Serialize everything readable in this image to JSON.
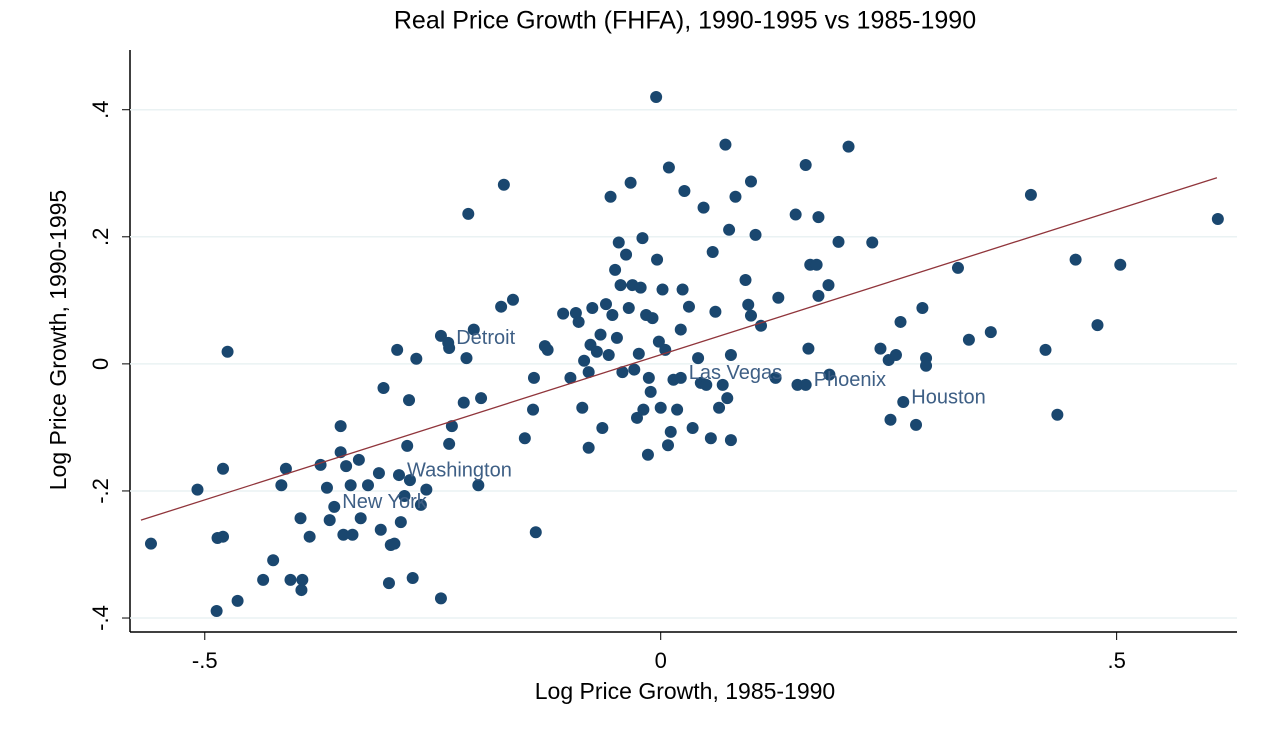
{
  "chart_data": {
    "type": "scatter",
    "title": "Real Price Growth (FHFA), 1990-1995 vs 1985-1990",
    "x_label": "Log Price Growth, 1985-1990",
    "y_label": "Log Price Growth, 1990-1995",
    "color": "#1a476f",
    "x": [
      -0.559,
      -0.508,
      -0.475,
      -0.48,
      -0.487,
      -0.486,
      -0.48,
      -0.464,
      -0.436,
      -0.425,
      -0.416,
      -0.411,
      -0.406,
      -0.395,
      -0.394,
      -0.393,
      -0.385,
      -0.373,
      -0.366,
      -0.363,
      -0.351,
      -0.351,
      -0.348,
      -0.345,
      -0.34,
      -0.338,
      -0.331,
      -0.329,
      -0.321,
      -0.309,
      -0.307,
      -0.304,
      -0.298,
      -0.296,
      -0.292,
      -0.289,
      -0.285,
      -0.281,
      -0.278,
      -0.276,
      -0.275,
      -0.272,
      -0.268,
      -0.263,
      -0.257,
      -0.241,
      -0.241,
      -0.232,
      -0.232,
      -0.229,
      -0.216,
      -0.213,
      -0.211,
      -0.205,
      -0.197,
      -0.2,
      -0.175,
      -0.172,
      -0.162,
      -0.149,
      -0.14,
      -0.139,
      -0.137,
      -0.127,
      -0.124,
      -0.107,
      -0.099,
      -0.093,
      -0.09,
      -0.086,
      -0.084,
      -0.079,
      -0.079,
      -0.077,
      -0.075,
      -0.07,
      -0.066,
      -0.064,
      -0.06,
      -0.057,
      -0.055,
      -0.053,
      -0.05,
      -0.048,
      -0.046,
      -0.044,
      -0.042,
      -0.038,
      -0.035,
      -0.033,
      -0.031,
      -0.029,
      -0.026,
      -0.024,
      -0.022,
      -0.02,
      -0.019,
      -0.016,
      -0.014,
      -0.013,
      -0.011,
      -0.009,
      -0.005,
      -0.004,
      -0.002,
      0.0,
      0.002,
      0.005,
      0.008,
      0.009,
      0.011,
      0.014,
      0.018,
      0.022,
      0.024,
      0.026,
      0.031,
      0.035,
      0.041,
      0.044,
      0.047,
      0.05,
      0.055,
      0.057,
      0.06,
      0.064,
      0.068,
      0.071,
      0.073,
      0.075,
      0.077,
      0.077,
      0.082,
      0.093,
      0.096,
      0.099,
      0.099,
      0.104,
      0.11,
      0.126,
      0.129,
      0.148,
      0.15,
      0.159,
      0.162,
      0.164,
      0.171,
      0.173,
      0.173,
      0.184,
      0.185,
      0.195,
      0.206,
      0.232,
      0.241,
      0.25,
      0.252,
      0.258,
      0.263,
      0.28,
      0.287,
      0.291,
      0.291,
      0.326,
      0.338,
      0.362,
      0.406,
      0.422,
      0.435,
      0.455,
      0.479,
      0.504,
      0.611
    ],
    "y": [
      -0.283,
      -0.198,
      0.019,
      -0.165,
      -0.389,
      -0.274,
      -0.272,
      -0.373,
      -0.34,
      -0.309,
      -0.191,
      -0.165,
      -0.34,
      -0.243,
      -0.356,
      -0.34,
      -0.272,
      -0.159,
      -0.195,
      -0.246,
      -0.098,
      -0.139,
      -0.269,
      -0.161,
      -0.191,
      -0.269,
      -0.151,
      -0.243,
      -0.191,
      -0.172,
      -0.261,
      -0.038,
      -0.345,
      -0.285,
      -0.283,
      0.022,
      -0.249,
      -0.208,
      -0.129,
      -0.057,
      -0.183,
      -0.337,
      0.008,
      -0.222,
      -0.198,
      -0.369,
      0.044,
      0.025,
      -0.126,
      -0.098,
      -0.061,
      0.009,
      0.236,
      0.054,
      -0.054,
      -0.191,
      0.09,
      0.282,
      0.101,
      -0.117,
      -0.072,
      -0.022,
      -0.265,
      0.028,
      0.022,
      0.079,
      -0.022,
      0.08,
      0.066,
      -0.069,
      0.005,
      -0.132,
      -0.013,
      0.03,
      0.088,
      0.019,
      0.046,
      -0.101,
      0.094,
      0.014,
      0.263,
      0.077,
      0.148,
      0.041,
      0.191,
      0.124,
      -0.013,
      0.172,
      0.088,
      0.285,
      0.124,
      -0.009,
      -0.085,
      0.016,
      0.12,
      0.198,
      -0.072,
      0.077,
      -0.143,
      -0.022,
      -0.044,
      0.072,
      0.42,
      0.164,
      0.035,
      -0.069,
      0.117,
      0.022,
      -0.128,
      0.309,
      -0.107,
      -0.025,
      -0.072,
      0.054,
      0.117,
      0.272,
      0.09,
      -0.101,
      0.009,
      -0.03,
      0.246,
      -0.033,
      -0.117,
      0.176,
      0.082,
      -0.069,
      -0.033,
      0.345,
      -0.054,
      0.211,
      0.014,
      -0.12,
      0.263,
      0.132,
      0.093,
      0.287,
      0.076,
      0.203,
      0.06,
      -0.022,
      0.104,
      0.235,
      -0.033,
      0.313,
      0.024,
      0.156,
      0.156,
      0.231,
      0.107,
      0.124,
      -0.017,
      0.192,
      0.342,
      0.191,
      0.024,
      0.006,
      -0.088,
      0.014,
      0.066,
      -0.096,
      0.088,
      0.009,
      -0.003,
      0.151,
      0.038,
      0.05,
      0.266,
      0.022,
      -0.08,
      0.164,
      0.061,
      0.156,
      0.228
    ],
    "annotations": [
      {
        "text": "Detroit",
        "x": -0.233,
        "y": 0.033
      },
      {
        "text": "Washington",
        "x": -0.287,
        "y": -0.175
      },
      {
        "text": "New York",
        "x": -0.358,
        "y": -0.225
      },
      {
        "text": "Las Vegas",
        "x": 0.022,
        "y": -0.022
      },
      {
        "text": "Phoenix",
        "x": 0.159,
        "y": -0.033
      },
      {
        "text": "Houston",
        "x": 0.266,
        "y": -0.06
      }
    ],
    "fit": {
      "x": [
        -0.57,
        0.61
      ],
      "y": [
        -0.246,
        0.293
      ],
      "color": "#90353b"
    },
    "xlim": [
      -0.582,
      0.632
    ],
    "ylim": [
      -0.422,
      0.494
    ],
    "xticks": [
      {
        "value": -0.5,
        "label": "-.5"
      },
      0,
      {
        "value": 0.5,
        "label": ".5"
      }
    ],
    "yticks": [
      {
        "value": -0.4,
        "label": "-.4"
      },
      {
        "value": -0.2,
        "label": "-.2"
      },
      0,
      {
        "value": 0.2,
        "label": ".2"
      },
      {
        "value": 0.4,
        "label": ".4"
      }
    ],
    "grid": true
  }
}
